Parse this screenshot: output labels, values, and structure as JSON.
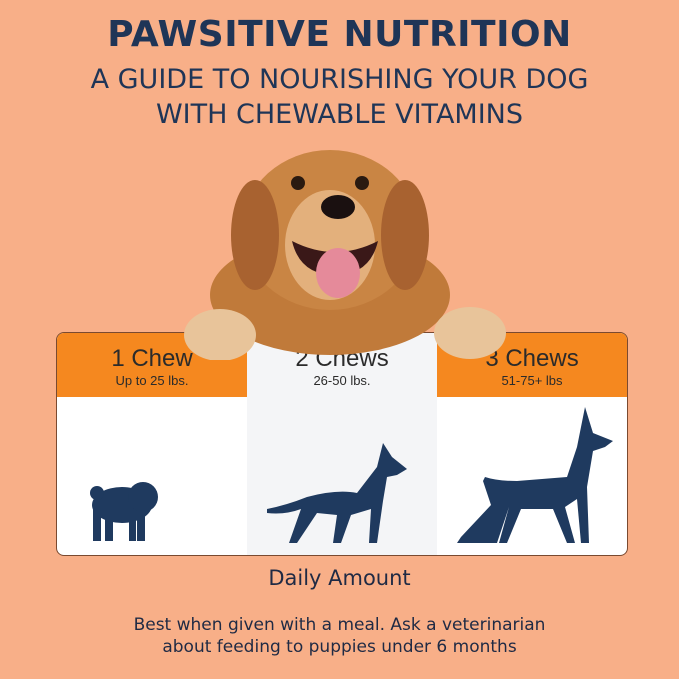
{
  "header": {
    "title": "PAWSITIVE NUTRITION",
    "subtitle_line1": "A GUIDE TO NOURISHING YOUR DOG",
    "subtitle_line2": "WITH CHEWABLE VITAMINS"
  },
  "dosage": [
    {
      "amount": "1 Chew",
      "weight": "Up to 25 lbs.",
      "icon": "small-dog-silhouette"
    },
    {
      "amount": "2 Chews",
      "weight": "26-50 lbs.",
      "icon": "medium-dog-silhouette"
    },
    {
      "amount": "3 Chews",
      "weight": "51-75+ lbs",
      "icon": "large-dog-silhouette"
    }
  ],
  "caption": "Daily Amount",
  "note_line1": "Best when given with a meal. Ask a veterinarian",
  "note_line2": "about feeding to puppies under 6 months",
  "colors": {
    "background": "#F8AF88",
    "accent": "#F5881F",
    "navy": "#1F3557"
  }
}
